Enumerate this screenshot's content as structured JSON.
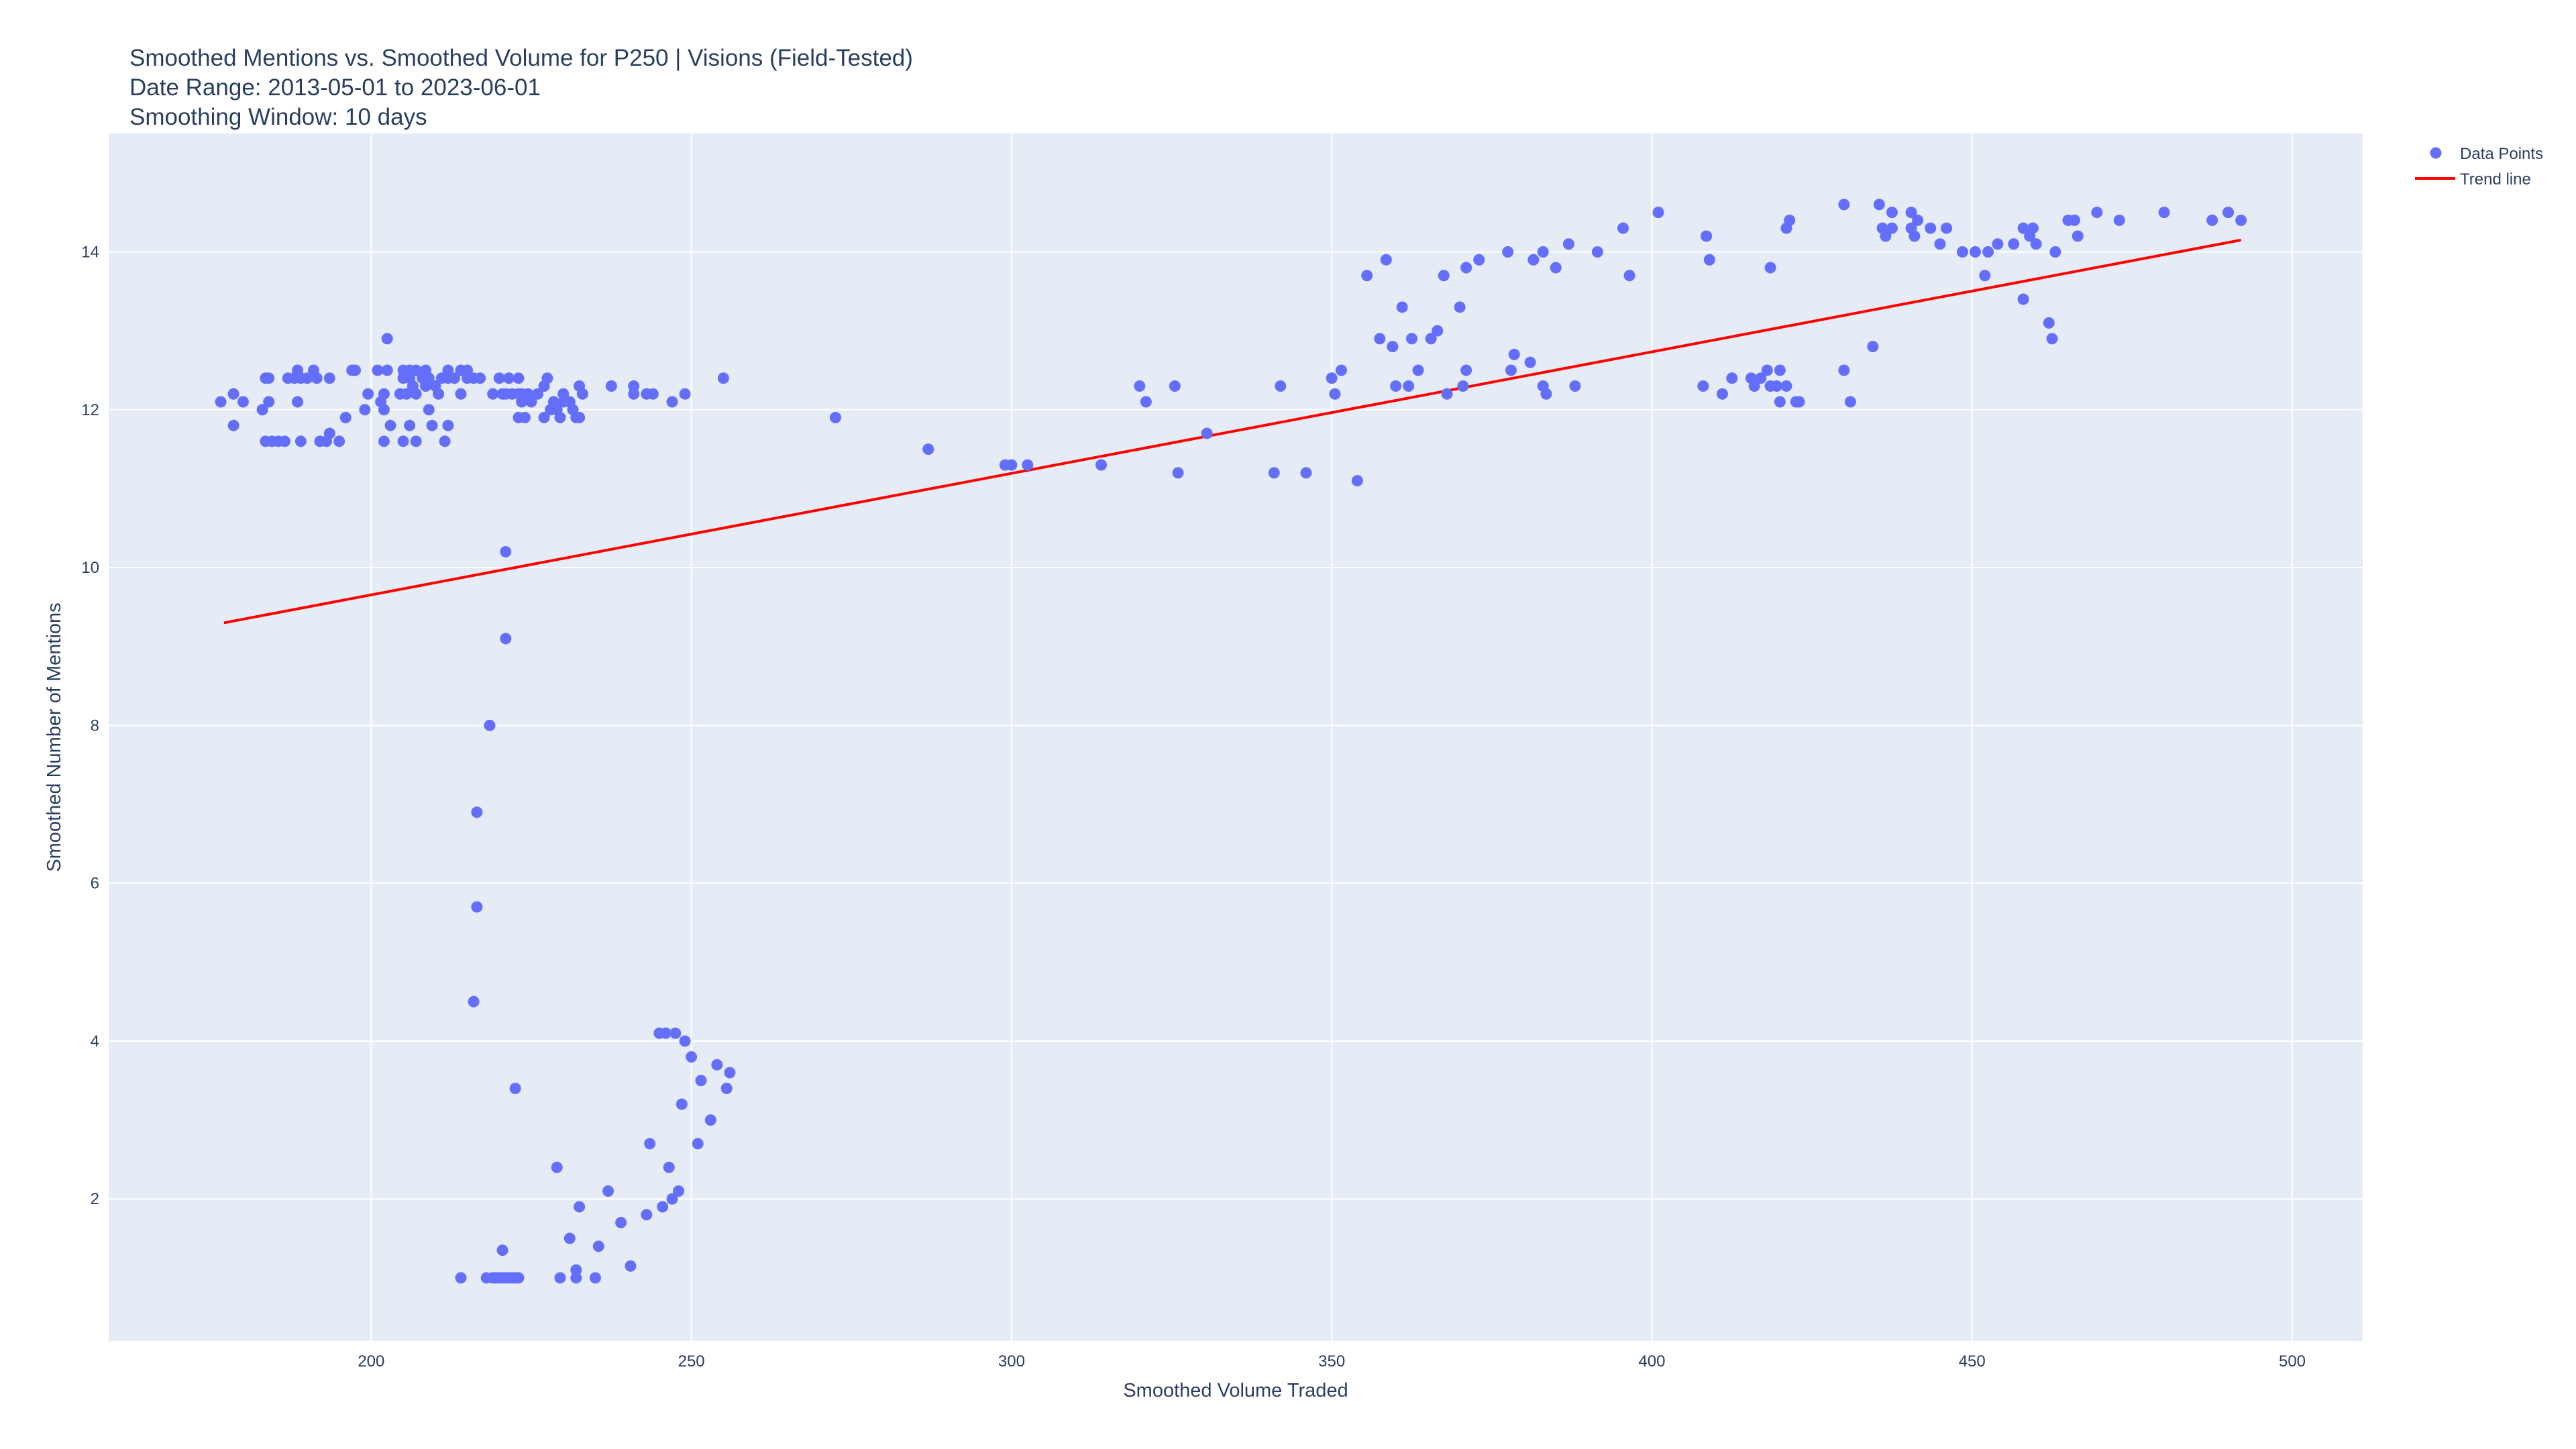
{
  "chart_data": {
    "type": "scatter",
    "title_lines": [
      "Smoothed Mentions vs. Smoothed Volume for P250 | Visions (Field-Tested)",
      "Date Range: 2013-05-01 to 2023-06-01",
      "Smoothing Window: 10 days"
    ],
    "xlabel": "Smoothed Volume Traded",
    "ylabel": "Smoothed Number of Mentions",
    "xlim": [
      159,
      511
    ],
    "ylim": [
      0.2,
      15.5
    ],
    "xticks": [
      200,
      250,
      300,
      350,
      400,
      450,
      500
    ],
    "yticks": [
      2,
      4,
      6,
      8,
      10,
      12,
      14
    ],
    "grid": true,
    "legend_position": "top-right",
    "colors": {
      "points": "#636efa",
      "trend": "#ff0000",
      "plot_bg": "#e5ecf6",
      "grid": "#ffffff",
      "text": "#2a3f5f"
    },
    "series": [
      {
        "name": "Data Points",
        "mode": "markers",
        "points": [
          [
            176.5,
            12.1
          ],
          [
            178.5,
            12.2
          ],
          [
            178.5,
            11.8
          ],
          [
            180,
            12.1
          ],
          [
            183,
            12.0
          ],
          [
            183.5,
            12.4
          ],
          [
            184,
            12.1
          ],
          [
            184,
            12.4
          ],
          [
            183.5,
            11.6
          ],
          [
            184.5,
            11.6
          ],
          [
            185.5,
            11.6
          ],
          [
            186.5,
            11.6
          ],
          [
            187,
            12.4
          ],
          [
            188,
            12.4
          ],
          [
            188.5,
            12.5
          ],
          [
            188.5,
            12.1
          ],
          [
            189,
            12.4
          ],
          [
            189,
            11.6
          ],
          [
            190,
            12.4
          ],
          [
            191,
            12.5
          ],
          [
            191.5,
            12.4
          ],
          [
            192,
            11.6
          ],
          [
            193,
            11.6
          ],
          [
            193.5,
            12.4
          ],
          [
            193.5,
            11.7
          ],
          [
            195,
            11.6
          ],
          [
            196,
            11.9
          ],
          [
            197,
            12.5
          ],
          [
            197.5,
            12.5
          ],
          [
            199,
            12.0
          ],
          [
            199.5,
            12.2
          ],
          [
            201,
            12.5
          ],
          [
            201.5,
            12.1
          ],
          [
            202,
            12.2
          ],
          [
            202,
            12.0
          ],
          [
            202,
            11.6
          ],
          [
            202.5,
            12.5
          ],
          [
            202.5,
            12.9
          ],
          [
            203,
            11.8
          ],
          [
            204.5,
            12.2
          ],
          [
            205,
            11.6
          ],
          [
            205,
            12.5
          ],
          [
            205,
            12.4
          ],
          [
            205.5,
            12.2
          ],
          [
            206,
            11.8
          ],
          [
            206,
            12.5
          ],
          [
            206,
            12.4
          ],
          [
            206.5,
            12.3
          ],
          [
            207,
            12.2
          ],
          [
            207,
            11.6
          ],
          [
            207,
            12.5
          ],
          [
            208,
            12.4
          ],
          [
            208.5,
            12.5
          ],
          [
            208.5,
            12.3
          ],
          [
            209,
            12.4
          ],
          [
            209,
            12.0
          ],
          [
            209.5,
            11.8
          ],
          [
            210,
            12.3
          ],
          [
            210.5,
            12.2
          ],
          [
            211,
            12.4
          ],
          [
            211.5,
            11.6
          ],
          [
            212,
            12.4
          ],
          [
            212,
            11.8
          ],
          [
            212,
            12.5
          ],
          [
            213,
            12.4
          ],
          [
            214,
            12.2
          ],
          [
            214,
            12.5
          ],
          [
            215,
            12.5
          ],
          [
            215,
            12.4
          ],
          [
            216,
            12.4
          ],
          [
            217,
            12.4
          ],
          [
            219,
            12.2
          ],
          [
            220,
            12.4
          ],
          [
            220.5,
            12.2
          ],
          [
            221,
            12.2
          ],
          [
            221.5,
            12.4
          ],
          [
            222,
            12.2
          ],
          [
            223,
            12.4
          ],
          [
            223,
            12.2
          ],
          [
            223.5,
            12.1
          ],
          [
            223,
            11.9
          ],
          [
            223.5,
            12.2
          ],
          [
            224,
            11.9
          ],
          [
            224.5,
            12.2
          ],
          [
            225,
            12.1
          ],
          [
            226,
            12.2
          ],
          [
            227,
            11.9
          ],
          [
            227,
            12.3
          ],
          [
            227.5,
            12.4
          ],
          [
            228,
            12.0
          ],
          [
            228.5,
            12.1
          ],
          [
            229,
            12.0
          ],
          [
            229.5,
            11.9
          ],
          [
            230,
            12.2
          ],
          [
            230,
            12.1
          ],
          [
            231,
            12.1
          ],
          [
            231.5,
            12.0
          ],
          [
            232,
            11.9
          ],
          [
            232.5,
            11.9
          ],
          [
            232.5,
            12.3
          ],
          [
            233,
            12.2
          ],
          [
            237.5,
            12.3
          ],
          [
            241,
            12.3
          ],
          [
            241,
            12.2
          ],
          [
            243,
            12.2
          ],
          [
            244,
            12.2
          ],
          [
            247,
            12.1
          ],
          [
            249,
            12.2
          ],
          [
            255,
            12.4
          ],
          [
            272.5,
            11.9
          ],
          [
            287,
            11.5
          ],
          [
            299,
            11.3
          ],
          [
            300,
            11.3
          ],
          [
            302.5,
            11.3
          ],
          [
            314,
            11.3
          ],
          [
            320,
            12.3
          ],
          [
            321,
            12.1
          ],
          [
            325.5,
            12.3
          ],
          [
            326,
            11.2
          ],
          [
            330.5,
            11.7
          ],
          [
            341,
            11.2
          ],
          [
            342,
            12.3
          ],
          [
            346,
            11.2
          ],
          [
            350,
            12.4
          ],
          [
            350.5,
            12.2
          ],
          [
            351.5,
            12.5
          ],
          [
            354,
            11.1
          ],
          [
            355.5,
            13.7
          ],
          [
            357.5,
            12.9
          ],
          [
            358.5,
            13.9
          ],
          [
            359.5,
            12.8
          ],
          [
            360,
            12.3
          ],
          [
            361,
            13.3
          ],
          [
            362,
            12.3
          ],
          [
            362.5,
            12.9
          ],
          [
            363.5,
            12.5
          ],
          [
            365.5,
            12.9
          ],
          [
            366.5,
            13.0
          ],
          [
            367.5,
            13.7
          ],
          [
            368,
            12.2
          ],
          [
            370,
            13.3
          ],
          [
            370.5,
            12.3
          ],
          [
            371,
            13.8
          ],
          [
            371,
            12.5
          ],
          [
            373,
            13.9
          ],
          [
            377.5,
            14.0
          ],
          [
            378,
            12.5
          ],
          [
            378.5,
            12.7
          ],
          [
            381,
            12.6
          ],
          [
            381.5,
            13.9
          ],
          [
            383,
            14.0
          ],
          [
            383,
            12.3
          ],
          [
            383.5,
            12.2
          ],
          [
            385,
            13.8
          ],
          [
            387,
            14.1
          ],
          [
            388,
            12.3
          ],
          [
            391.5,
            14.0
          ],
          [
            395.5,
            14.3
          ],
          [
            396.5,
            13.7
          ],
          [
            401,
            14.5
          ],
          [
            408,
            12.3
          ],
          [
            408.5,
            14.2
          ],
          [
            409,
            13.9
          ],
          [
            411,
            12.2
          ],
          [
            412.5,
            12.4
          ],
          [
            415.5,
            12.4
          ],
          [
            416,
            12.3
          ],
          [
            417,
            12.4
          ],
          [
            418,
            12.5
          ],
          [
            418.5,
            12.3
          ],
          [
            418.5,
            13.8
          ],
          [
            419.5,
            12.3
          ],
          [
            420,
            12.1
          ],
          [
            420,
            12.5
          ],
          [
            421,
            14.3
          ],
          [
            421,
            12.3
          ],
          [
            421.5,
            14.4
          ],
          [
            422.5,
            12.1
          ],
          [
            423,
            12.1
          ],
          [
            430,
            14.6
          ],
          [
            430,
            12.5
          ],
          [
            431,
            12.1
          ],
          [
            434.5,
            12.8
          ],
          [
            435.5,
            14.6
          ],
          [
            436,
            14.3
          ],
          [
            436.5,
            14.2
          ],
          [
            437.5,
            14.5
          ],
          [
            437.5,
            14.3
          ],
          [
            440.5,
            14.5
          ],
          [
            440.5,
            14.3
          ],
          [
            441,
            14.2
          ],
          [
            441.5,
            14.4
          ],
          [
            443.5,
            14.3
          ],
          [
            445,
            14.1
          ],
          [
            446,
            14.3
          ],
          [
            448.5,
            14.0
          ],
          [
            450.5,
            14.0
          ],
          [
            452,
            13.7
          ],
          [
            452.5,
            14.0
          ],
          [
            454,
            14.1
          ],
          [
            456.5,
            14.1
          ],
          [
            458,
            13.4
          ],
          [
            458,
            14.3
          ],
          [
            459,
            14.2
          ],
          [
            459.5,
            14.3
          ],
          [
            460,
            14.1
          ],
          [
            462,
            13.1
          ],
          [
            462.5,
            12.9
          ],
          [
            463,
            14.0
          ],
          [
            465,
            14.4
          ],
          [
            466,
            14.4
          ],
          [
            466.5,
            14.2
          ],
          [
            469.5,
            14.5
          ],
          [
            473,
            14.4
          ],
          [
            480,
            14.5
          ],
          [
            487.5,
            14.4
          ],
          [
            490,
            14.5
          ],
          [
            492,
            14.4
          ],
          [
            221,
            10.2
          ],
          [
            221,
            9.1
          ],
          [
            218.5,
            8.0
          ],
          [
            216.5,
            6.9
          ],
          [
            216.5,
            5.7
          ],
          [
            216,
            4.5
          ],
          [
            222.5,
            3.4
          ],
          [
            214,
            1.0
          ],
          [
            218,
            1.0
          ],
          [
            219,
            1.0
          ],
          [
            219.5,
            1.0
          ],
          [
            220,
            1.0
          ],
          [
            220.5,
            1.0
          ],
          [
            221,
            1.0
          ],
          [
            221.5,
            1.0
          ],
          [
            222,
            1.0
          ],
          [
            222.5,
            1.0
          ],
          [
            223,
            1.0
          ],
          [
            220.5,
            1.35
          ],
          [
            229,
            2.4
          ],
          [
            229.5,
            1.0
          ],
          [
            231,
            1.5
          ],
          [
            232,
            1.0
          ],
          [
            232,
            1.1
          ],
          [
            232.5,
            1.9
          ],
          [
            235,
            1.0
          ],
          [
            235.5,
            1.4
          ],
          [
            237,
            2.1
          ],
          [
            239,
            1.7
          ],
          [
            240.5,
            1.15
          ],
          [
            243,
            1.8
          ],
          [
            243.5,
            2.7
          ],
          [
            245,
            4.1
          ],
          [
            245.5,
            1.9
          ],
          [
            246,
            4.1
          ],
          [
            246.5,
            2.4
          ],
          [
            247,
            2.0
          ],
          [
            247.5,
            4.1
          ],
          [
            248,
            2.1
          ],
          [
            248.5,
            3.2
          ],
          [
            249,
            4.0
          ],
          [
            250,
            3.8
          ],
          [
            251,
            2.7
          ],
          [
            251.5,
            3.5
          ],
          [
            253,
            3.0
          ],
          [
            254,
            3.7
          ],
          [
            255.5,
            3.4
          ],
          [
            256,
            3.6
          ]
        ]
      },
      {
        "name": "Trend line",
        "mode": "lines",
        "points": [
          [
            177,
            9.3
          ],
          [
            492,
            14.15
          ]
        ]
      }
    ]
  }
}
